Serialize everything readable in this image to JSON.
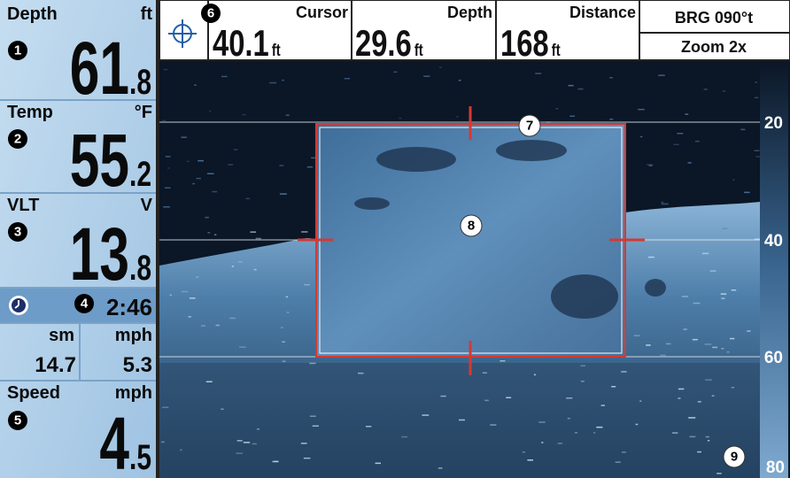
{
  "left_panel": {
    "depth": {
      "label": "Depth",
      "unit": "ft",
      "value": "61",
      "decimal": ".8",
      "callout": "1"
    },
    "temp": {
      "label": "Temp",
      "unit": "°F",
      "value": "55",
      "decimal": ".2",
      "callout": "2"
    },
    "voltage": {
      "label": "VLT",
      "unit": "V",
      "value": "13",
      "decimal": ".8",
      "callout": "3"
    },
    "time": {
      "callout": "4",
      "value": "2:46"
    },
    "trip": {
      "units": [
        "sm",
        "mph"
      ],
      "values": [
        "14.7",
        "5.3"
      ]
    },
    "speed": {
      "label": "Speed",
      "unit": "mph",
      "value": "4",
      "decimal": ".5",
      "callout": "5"
    }
  },
  "top_bar": {
    "callout": "6",
    "readouts": [
      {
        "label": "Cursor",
        "value": "40.1",
        "unit": "ft"
      },
      {
        "label": "Depth",
        "value": "29.6",
        "unit": "ft"
      },
      {
        "label": "Distance",
        "value": "168",
        "unit": "ft"
      }
    ],
    "bearing": "BRG 090°t",
    "zoom": "Zoom 2x"
  },
  "sonar": {
    "depth_scale": [
      "20",
      "40",
      "60",
      "80"
    ],
    "callouts": [
      "7",
      "8",
      "9"
    ]
  }
}
